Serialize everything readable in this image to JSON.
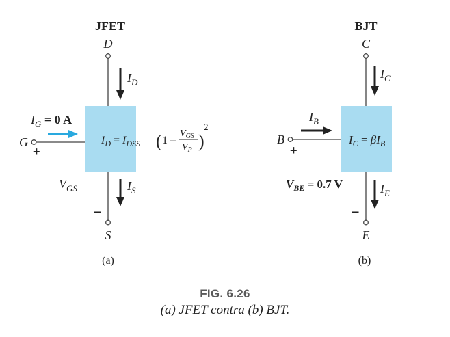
{
  "colors": {
    "box_fill": "#a9dcf1",
    "wire": "#444444",
    "text": "#222222",
    "gate_arrow": "#29a9df",
    "caption_number": "#5a5a5a"
  },
  "jfet": {
    "title": "JFET",
    "drain_label": "D",
    "gate_label": "G",
    "source_label": "S",
    "drain_current": {
      "main": "I",
      "sub": "D"
    },
    "source_current": {
      "main": "I",
      "sub": "S"
    },
    "gate_current": {
      "main": "I",
      "sub": "G",
      "rest": " = 0 A"
    },
    "vgs": {
      "main": "V",
      "sub": "GS"
    },
    "plus": "+",
    "minus": "–",
    "equation": {
      "lhs_main": "I",
      "lhs_sub": "D",
      "eq": " = ",
      "idss_main": "I",
      "idss_sub": "DSS",
      "one_minus": "1 –",
      "num_main": "V",
      "num_sub": "GS",
      "den_main": "V",
      "den_sub": "P",
      "exponent": "2"
    },
    "panel_label": "(a)"
  },
  "bjt": {
    "title": "BJT",
    "collector_label": "C",
    "base_label": "B",
    "emitter_label": "E",
    "collector_current": {
      "main": "I",
      "sub": "C"
    },
    "emitter_current": {
      "main": "I",
      "sub": "E"
    },
    "base_current": {
      "main": "I",
      "sub": "B"
    },
    "vbe": {
      "main": "V",
      "sub": "BE",
      "rest": " = 0.7 V"
    },
    "plus": "+",
    "minus": "–",
    "equation": {
      "lhs_main": "I",
      "lhs_sub": "C",
      "eq": " = ",
      "beta": "β",
      "rhs_main": "I",
      "rhs_sub": "B"
    },
    "panel_label": "(b)"
  },
  "caption": {
    "number": "FIG. 6.26",
    "text": "(a) JFET contra (b) BJT."
  }
}
